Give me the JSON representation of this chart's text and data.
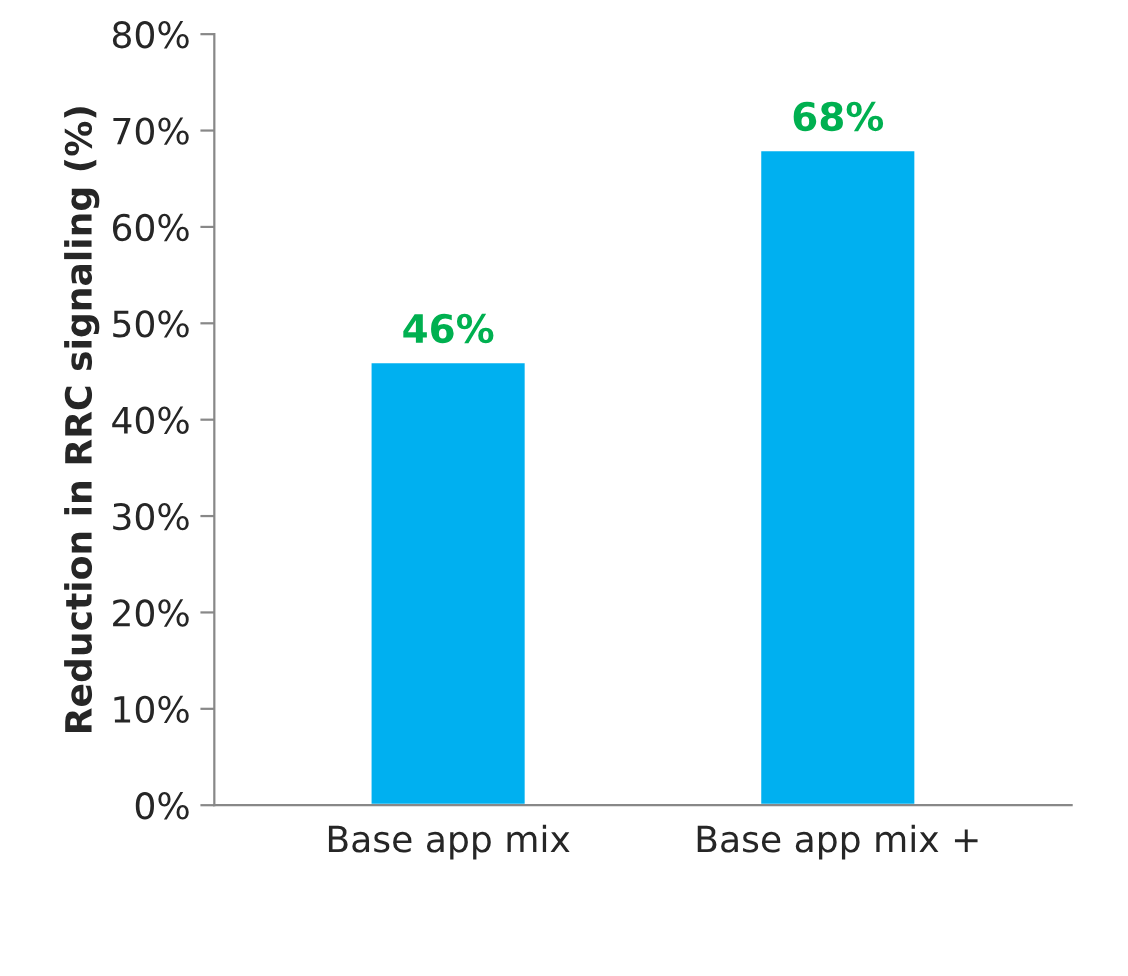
{
  "chart_data": {
    "type": "bar",
    "ylabel": "Reduction in RRC signaling (%)",
    "categories": [
      "Base app mix",
      "Base app mix +"
    ],
    "values": [
      46,
      68
    ],
    "color": "#00b0f0",
    "value_labels": [
      "46%",
      "68%"
    ],
    "ylim": [
      0,
      80
    ],
    "yticks": [
      {
        "value": 0,
        "label": "0%"
      },
      {
        "value": 10,
        "label": "10%"
      },
      {
        "value": 20,
        "label": "20%"
      },
      {
        "value": 30,
        "label": "30%"
      },
      {
        "value": 40,
        "label": "40%"
      },
      {
        "value": 50,
        "label": "50%"
      },
      {
        "value": 60,
        "label": "60%"
      },
      {
        "value": 70,
        "label": "70%"
      },
      {
        "value": 80,
        "label": "80%"
      }
    ],
    "grid": false
  }
}
